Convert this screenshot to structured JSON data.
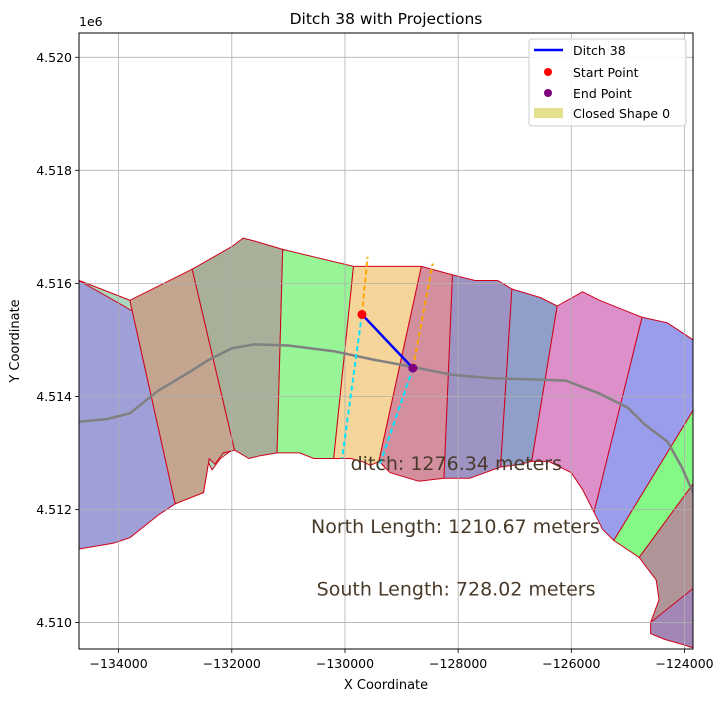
{
  "chart_data": {
    "type": "map",
    "title": "Ditch 38 with Projections",
    "xlabel": "X Coordinate",
    "ylabel": "Y Coordinate",
    "y_offset_label": "1e6",
    "xlim": [
      -134700,
      -123850
    ],
    "ylim": [
      4.50953,
      4.52043
    ],
    "x_ticks": [
      -134000,
      -132000,
      -130000,
      -128000,
      -126000,
      -124000
    ],
    "x_tick_labels": [
      "−134000",
      "−132000",
      "−130000",
      "−128000",
      "−126000",
      "−124000"
    ],
    "y_ticks": [
      4.51,
      4.512,
      4.514,
      4.516,
      4.518,
      4.52
    ],
    "y_tick_labels": [
      "4.510",
      "4.512",
      "4.514",
      "4.516",
      "4.518",
      "4.520"
    ],
    "grid": true,
    "legend_position": "top-right",
    "legend": [
      {
        "label": "Ditch 38",
        "kind": "line",
        "color": "#0000ff"
      },
      {
        "label": "Start Point",
        "kind": "point",
        "color": "#ff0000"
      },
      {
        "label": "End Point",
        "kind": "point",
        "color": "#800080"
      },
      {
        "label": "Closed Shape 0",
        "kind": "patch",
        "color": "#e3e08e"
      }
    ],
    "regions": [
      {
        "color": "#a0a0d8",
        "points": [
          [
            -134700,
            4.51605
          ],
          [
            -133800,
            4.5157
          ],
          [
            -133650,
            4.51545
          ],
          [
            -133000,
            4.5121
          ],
          [
            -133300,
            4.5119
          ],
          [
            -133800,
            4.5115
          ],
          [
            -134100,
            4.5114
          ],
          [
            -134700,
            4.5113
          ]
        ]
      },
      {
        "color": "#a9d7bd",
        "points": [
          [
            -134700,
            4.51605
          ],
          [
            -133800,
            4.5157
          ],
          [
            -133000,
            4.5121
          ],
          [
            -132500,
            4.5123
          ],
          [
            -132400,
            4.5129
          ],
          [
            -132000,
            4.51305
          ],
          [
            -132200,
            4.5129
          ],
          [
            -132350,
            4.5127
          ],
          [
            -133650,
            4.51545
          ]
        ]
      },
      {
        "color": "#c4a690",
        "points": [
          [
            -133800,
            4.5157
          ],
          [
            -132700,
            4.51625
          ],
          [
            -131950,
            4.51305
          ],
          [
            -132150,
            4.513
          ],
          [
            -132300,
            4.5128
          ],
          [
            -132400,
            4.5129
          ],
          [
            -132500,
            4.5123
          ],
          [
            -133000,
            4.5121
          ]
        ]
      },
      {
        "color": "#a8b09a",
        "points": [
          [
            -132700,
            4.51625
          ],
          [
            -132000,
            4.51665
          ],
          [
            -131800,
            4.5168
          ],
          [
            -131600,
            4.51675
          ],
          [
            -131100,
            4.5166
          ],
          [
            -131200,
            4.513
          ],
          [
            -131500,
            4.51295
          ],
          [
            -131700,
            4.5129
          ],
          [
            -131950,
            4.51305
          ]
        ]
      },
      {
        "color": "#97f597",
        "points": [
          [
            -131100,
            4.5166
          ],
          [
            -129850,
            4.5163
          ],
          [
            -130200,
            4.5129
          ],
          [
            -130550,
            4.5129
          ],
          [
            -130800,
            4.513
          ],
          [
            -131200,
            4.513
          ]
        ]
      },
      {
        "color": "#f5d599",
        "points": [
          [
            -129850,
            4.5163
          ],
          [
            -128650,
            4.5163
          ],
          [
            -129400,
            4.51285
          ],
          [
            -129550,
            4.51278
          ],
          [
            -129700,
            4.51285
          ],
          [
            -129900,
            4.5129
          ],
          [
            -130200,
            4.5129
          ]
        ]
      },
      {
        "color": "#d48f9e",
        "points": [
          [
            -128650,
            4.5163
          ],
          [
            -128100,
            4.51615
          ],
          [
            -128250,
            4.51255
          ],
          [
            -128700,
            4.5125
          ],
          [
            -129200,
            4.51265
          ],
          [
            -129400,
            4.51285
          ]
        ]
      },
      {
        "color": "#9e94c4",
        "points": [
          [
            -128100,
            4.51615
          ],
          [
            -127700,
            4.51605
          ],
          [
            -127300,
            4.51605
          ],
          [
            -127050,
            4.5159
          ],
          [
            -127250,
            4.51275
          ],
          [
            -127800,
            4.51255
          ],
          [
            -128250,
            4.51255
          ]
        ]
      },
      {
        "color": "#909fc9",
        "points": [
          [
            -127050,
            4.5159
          ],
          [
            -126550,
            4.51575
          ],
          [
            -126250,
            4.5156
          ],
          [
            -126700,
            4.51285
          ],
          [
            -126900,
            4.5128
          ],
          [
            -127250,
            4.51275
          ]
        ]
      },
      {
        "color": "#dc8fc8",
        "points": [
          [
            -126250,
            4.5156
          ],
          [
            -125800,
            4.51585
          ],
          [
            -125500,
            4.5157
          ],
          [
            -124750,
            4.5154
          ],
          [
            -125600,
            4.51195
          ],
          [
            -125800,
            4.51235
          ],
          [
            -126000,
            4.51265
          ],
          [
            -126400,
            4.51285
          ],
          [
            -126700,
            4.51285
          ]
        ]
      },
      {
        "color": "#9a9cec",
        "points": [
          [
            -124750,
            4.5154
          ],
          [
            -124300,
            4.5153
          ],
          [
            -124000,
            4.5151
          ],
          [
            -123850,
            4.515
          ],
          [
            -123850,
            4.51375
          ],
          [
            -125250,
            4.51145
          ],
          [
            -125450,
            4.51165
          ],
          [
            -125600,
            4.51195
          ]
        ]
      },
      {
        "color": "#85f985",
        "points": [
          [
            -123850,
            4.51375
          ],
          [
            -125250,
            4.51145
          ],
          [
            -124800,
            4.51115
          ],
          [
            -123850,
            4.51245
          ]
        ]
      },
      {
        "color": "#b09598",
        "points": [
          [
            -123850,
            4.51245
          ],
          [
            -124800,
            4.51115
          ],
          [
            -124500,
            4.51075
          ],
          [
            -124450,
            4.5104
          ],
          [
            -124600,
            4.51
          ],
          [
            -124400,
            4.5098
          ],
          [
            -123850,
            4.5106
          ]
        ]
      },
      {
        "color": "#a286b6",
        "points": [
          [
            -123850,
            4.5106
          ],
          [
            -124600,
            4.51
          ],
          [
            -124600,
            4.5098
          ],
          [
            -124350,
            4.5097
          ],
          [
            -124000,
            4.5096
          ],
          [
            -123850,
            4.50955
          ]
        ]
      }
    ],
    "centerline": [
      [
        -134700,
        4.51355
      ],
      [
        -134200,
        4.5136
      ],
      [
        -133800,
        4.5137
      ],
      [
        -133300,
        4.5141
      ],
      [
        -132800,
        4.5144
      ],
      [
        -132400,
        4.51465
      ],
      [
        -132000,
        4.51485
      ],
      [
        -131600,
        4.51492
      ],
      [
        -131000,
        4.5149
      ],
      [
        -130200,
        4.5148
      ],
      [
        -129500,
        4.51465
      ],
      [
        -128800,
        4.51452
      ],
      [
        -128100,
        4.51438
      ],
      [
        -127400,
        4.51432
      ],
      [
        -126700,
        4.5143
      ],
      [
        -126100,
        4.51428
      ],
      [
        -125500,
        4.51405
      ],
      [
        -125000,
        4.5138
      ],
      [
        -124700,
        4.5135
      ],
      [
        -124300,
        4.5132
      ],
      [
        -124050,
        4.51275
      ],
      [
        -123850,
        4.5123
      ]
    ],
    "ditch": {
      "name": "Ditch 38",
      "start": [
        -129700,
        4.51545
      ],
      "end": [
        -128800,
        4.5145
      ]
    },
    "projections": [
      {
        "color": "#00e5ff",
        "points": [
          [
            -129700,
            4.51545
          ],
          [
            -130050,
            4.5129
          ]
        ]
      },
      {
        "color": "#00e5ff",
        "points": [
          [
            -128800,
            4.5145
          ],
          [
            -129400,
            4.51275
          ]
        ]
      },
      {
        "color": "#ffa500",
        "points": [
          [
            -129700,
            4.51545
          ],
          [
            -129600,
            4.51647
          ]
        ]
      },
      {
        "color": "#ffa500",
        "points": [
          [
            -128800,
            4.5145
          ],
          [
            -128450,
            4.51635
          ]
        ]
      }
    ],
    "annotations": [
      {
        "text": "ditch: 1276.34 meters",
        "x": -129900,
        "y": 4.5127
      },
      {
        "text": "North Length: 1210.67 meters",
        "x": -130600,
        "y": 4.51158
      },
      {
        "text": "South Length: 728.02 meters",
        "x": -130500,
        "y": 4.51048
      }
    ]
  }
}
